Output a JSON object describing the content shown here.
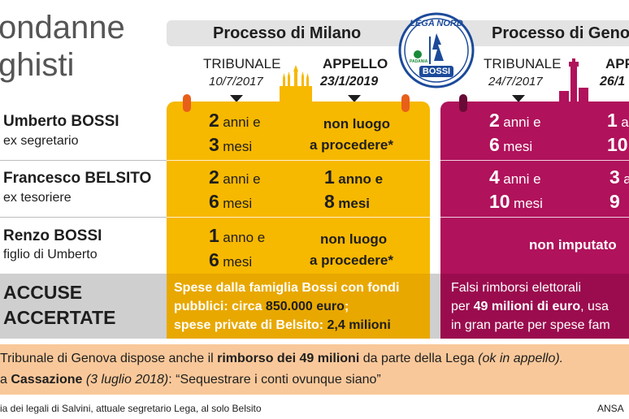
{
  "title": {
    "line1": "ondanne",
    "line2": "ghisti"
  },
  "milano": {
    "title": "Processo di Milano",
    "tribunale_label": "TRIBUNALE",
    "tribunale_date": "10/7/2017",
    "appello_label": "APPELLO",
    "appello_date": "23/1/2019"
  },
  "genova": {
    "title": "Processo di Geno",
    "tribunale_label": "TRIBUNALE",
    "tribunale_date": "24/7/2017",
    "appello_label": "APP",
    "appello_date": "26/1"
  },
  "logo": {
    "top_text": "LEGA NORD",
    "small_text": "PADANIA",
    "bottom_text": "BOSSI"
  },
  "people": [
    {
      "name": "Umberto BOSSI",
      "role": "ex segretario",
      "milano_tribunale": {
        "n1": "2",
        "u1": "anni e",
        "n2": "3",
        "u2": "mesi"
      },
      "milano_appello": {
        "line1": "non luogo",
        "line2": "a procedere*"
      },
      "genova_tribunale": {
        "n1": "2",
        "u1": "anni e",
        "n2": "6",
        "u2": "mesi"
      },
      "genova_appello": {
        "n1": "1",
        "u1": "a",
        "n2": "10",
        "u2": ""
      }
    },
    {
      "name": "Francesco BELSITO",
      "role": "ex tesoriere",
      "milano_tribunale": {
        "n1": "2",
        "u1": "anni e",
        "n2": "6",
        "u2": "mesi"
      },
      "milano_appello": {
        "n1": "1",
        "u1": "anno e",
        "n2": "8",
        "u2": "mesi"
      },
      "genova_tribunale": {
        "n1": "4",
        "u1": "anni e",
        "n2": "10",
        "u2": "mesi"
      },
      "genova_appello": {
        "n1": "3",
        "u1": "a",
        "n2": "9",
        "u2": ""
      }
    },
    {
      "name": "Renzo BOSSI",
      "role": "figlio di Umberto",
      "milano_tribunale": {
        "n1": "1",
        "u1": "anno e",
        "n2": "6",
        "u2": "mesi"
      },
      "milano_appello": {
        "line1": "non luogo",
        "line2": "a procedere*"
      },
      "genova": "non imputato"
    }
  ],
  "accuse": {
    "line1": "ACCUSE",
    "line2": "ACCERTATE",
    "milano_line1": "Spese dalla famiglia Bossi con fondi",
    "milano_line2_a": "pubblici: circa ",
    "milano_line2_b": "850.000 euro",
    "milano_line2_c": ";",
    "milano_line3_a": "spese private di Belsito: ",
    "milano_line3_b": "2,4 milioni",
    "genova_line1": "Falsi rimborsi elettorali",
    "genova_line2_a": "per ",
    "genova_line2_b": "49 milioni di euro",
    "genova_line2_c": ", usa",
    "genova_line3": "in gran parte per spese fam"
  },
  "notes": {
    "line1_a": "Tribunale di Genova dispose anche il ",
    "line1_b": "rimborso dei 49 milioni",
    "line1_c": " da parte della Lega ",
    "line1_d": "(ok in appello).",
    "line2_a": "a ",
    "line2_b": "Cassazione",
    "line2_c": " ",
    "line2_d": "(3 luglio 2018)",
    "line2_e": ": “Sequestrare i conti ovunque siano”"
  },
  "footer": {
    "text": "ia dei legali di Salvini, attuale segretario Lega, al solo Belsito",
    "credit": "ANSA"
  },
  "colors": {
    "milano": "#f7b800",
    "genova": "#b0125b",
    "note_band": "#f9c89a",
    "accuse_band": "#cfcfcf"
  }
}
